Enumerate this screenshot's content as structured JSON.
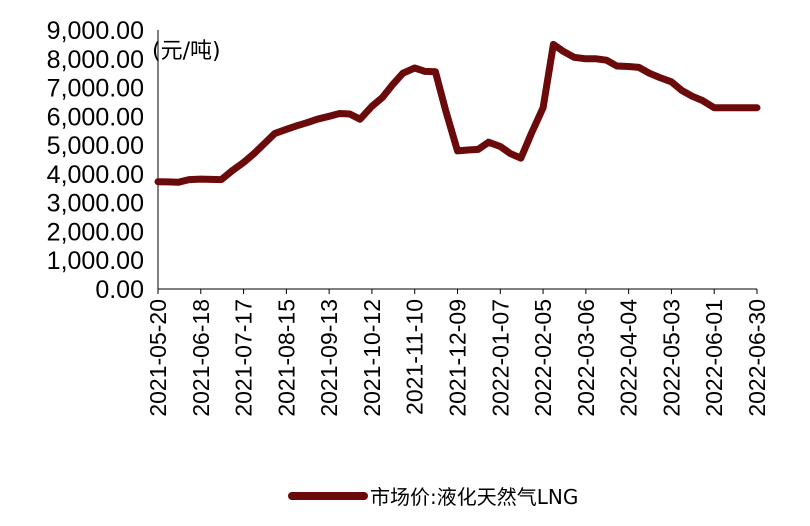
{
  "chart_data": {
    "type": "line",
    "title": "",
    "unit_label": "(元/吨)",
    "xlabel": "",
    "ylabel": "",
    "ylim": [
      0,
      9000
    ],
    "y_ticks": [
      "0.00",
      "1,000.00",
      "2,000.00",
      "3,000.00",
      "4,000.00",
      "5,000.00",
      "6,000.00",
      "7,000.00",
      "8,000.00",
      "9,000.00"
    ],
    "x_ticks": [
      "2021-05-20",
      "2021-06-18",
      "2021-07-17",
      "2021-08-15",
      "2021-09-13",
      "2021-10-12",
      "2021-11-10",
      "2021-12-09",
      "2022-01-07",
      "2022-02-05",
      "2022-03-06",
      "2022-04-04",
      "2022-05-03",
      "2022-06-01",
      "2022-06-30"
    ],
    "legend_position": "bottom",
    "grid": false,
    "series": [
      {
        "name": "市场价:液化天然气LNG",
        "color": "#6b0a0a",
        "x": [
          "2021-05-20",
          "2021-05-27",
          "2021-06-03",
          "2021-06-10",
          "2021-06-18",
          "2021-06-25",
          "2021-07-02",
          "2021-07-09",
          "2021-07-17",
          "2021-07-24",
          "2021-07-31",
          "2021-08-07",
          "2021-08-15",
          "2021-08-22",
          "2021-08-29",
          "2021-09-05",
          "2021-09-13",
          "2021-09-20",
          "2021-09-27",
          "2021-10-04",
          "2021-10-12",
          "2021-10-19",
          "2021-10-26",
          "2021-11-02",
          "2021-11-10",
          "2021-11-17",
          "2021-11-24",
          "2021-12-01",
          "2021-12-09",
          "2021-12-16",
          "2021-12-23",
          "2021-12-30",
          "2022-01-07",
          "2022-01-14",
          "2022-01-21",
          "2022-01-28",
          "2022-02-05",
          "2022-02-12",
          "2022-02-19",
          "2022-02-26",
          "2022-03-06",
          "2022-03-13",
          "2022-03-20",
          "2022-03-27",
          "2022-04-04",
          "2022-04-11",
          "2022-04-18",
          "2022-04-25",
          "2022-05-03",
          "2022-05-10",
          "2022-05-17",
          "2022-05-24",
          "2022-06-01",
          "2022-06-08",
          "2022-06-15",
          "2022-06-22",
          "2022-06-30"
        ],
        "values": [
          3730,
          3720,
          3710,
          3800,
          3820,
          3810,
          3800,
          4100,
          4400,
          4700,
          5050,
          5400,
          5550,
          5670,
          5780,
          5900,
          6000,
          6100,
          6080,
          5900,
          6350,
          6650,
          7100,
          7500,
          7680,
          7560,
          7550,
          6200,
          4800,
          4830,
          4850,
          5100,
          4950,
          4700,
          4550,
          5400,
          6300,
          8500,
          8250,
          8050,
          8000,
          8000,
          7950,
          7750,
          7730,
          7700,
          7500,
          7350,
          7200,
          6900,
          6700,
          6550,
          6300,
          6300,
          6300,
          6300,
          6300
        ]
      }
    ]
  }
}
